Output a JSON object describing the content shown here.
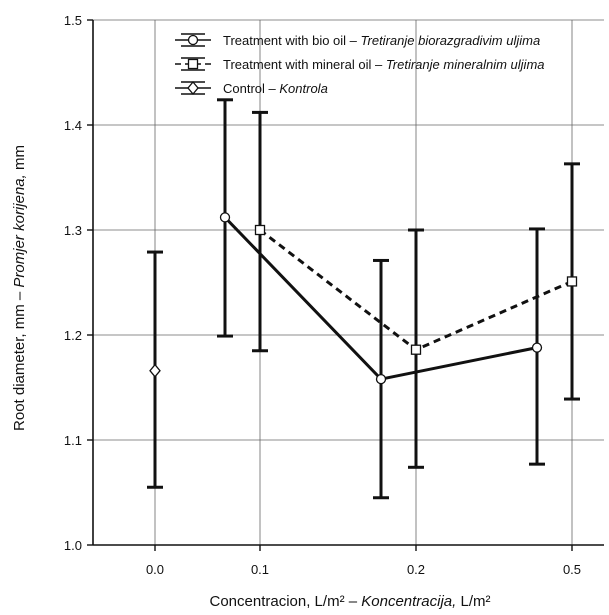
{
  "chart_data": {
    "type": "line",
    "xlabel": "Concentracion, L/m² – ",
    "xlabel_italic": "Koncentracija,",
    "xlabel_tail": " L/m²",
    "ylabel": "Root diameter, mm – ",
    "ylabel_italic": "Promjer korijena,",
    "ylabel_tail": " mm",
    "categories": [
      "0.0",
      "0.1",
      "0.2",
      "0.5"
    ],
    "y_ticks": [
      "1.0",
      "1.1",
      "1.2",
      "1.3",
      "1.4",
      "1.5"
    ],
    "ylim": [
      1.0,
      1.5
    ],
    "grid": true,
    "legend_position": "top-right",
    "series": [
      {
        "name": "Treatment with bio oil – ",
        "name_italic": "Tretiranje biorazgradivim uljima",
        "marker": "circle",
        "line": "solid",
        "points": [
          {
            "x": "0.1",
            "y": 1.312,
            "err_low": 1.199,
            "err_high": 1.424
          },
          {
            "x": "0.2",
            "y": 1.158,
            "err_low": 1.045,
            "err_high": 1.271
          },
          {
            "x": "0.5",
            "y": 1.188,
            "err_low": 1.077,
            "err_high": 1.301
          }
        ]
      },
      {
        "name": "Treatment with mineral oil – ",
        "name_italic": "Tretiranje mineralnim uljima",
        "marker": "square",
        "line": "dashed",
        "points": [
          {
            "x": "0.1",
            "y": 1.3,
            "err_low": 1.185,
            "err_high": 1.412
          },
          {
            "x": "0.2",
            "y": 1.186,
            "err_low": 1.074,
            "err_high": 1.3
          },
          {
            "x": "0.5",
            "y": 1.251,
            "err_low": 1.139,
            "err_high": 1.363
          }
        ]
      },
      {
        "name": "Control – ",
        "name_italic": "Kontrola",
        "marker": "diamond",
        "line": "none",
        "points": [
          {
            "x": "0.0",
            "y": 1.166,
            "err_low": 1.055,
            "err_high": 1.279
          }
        ]
      }
    ]
  }
}
